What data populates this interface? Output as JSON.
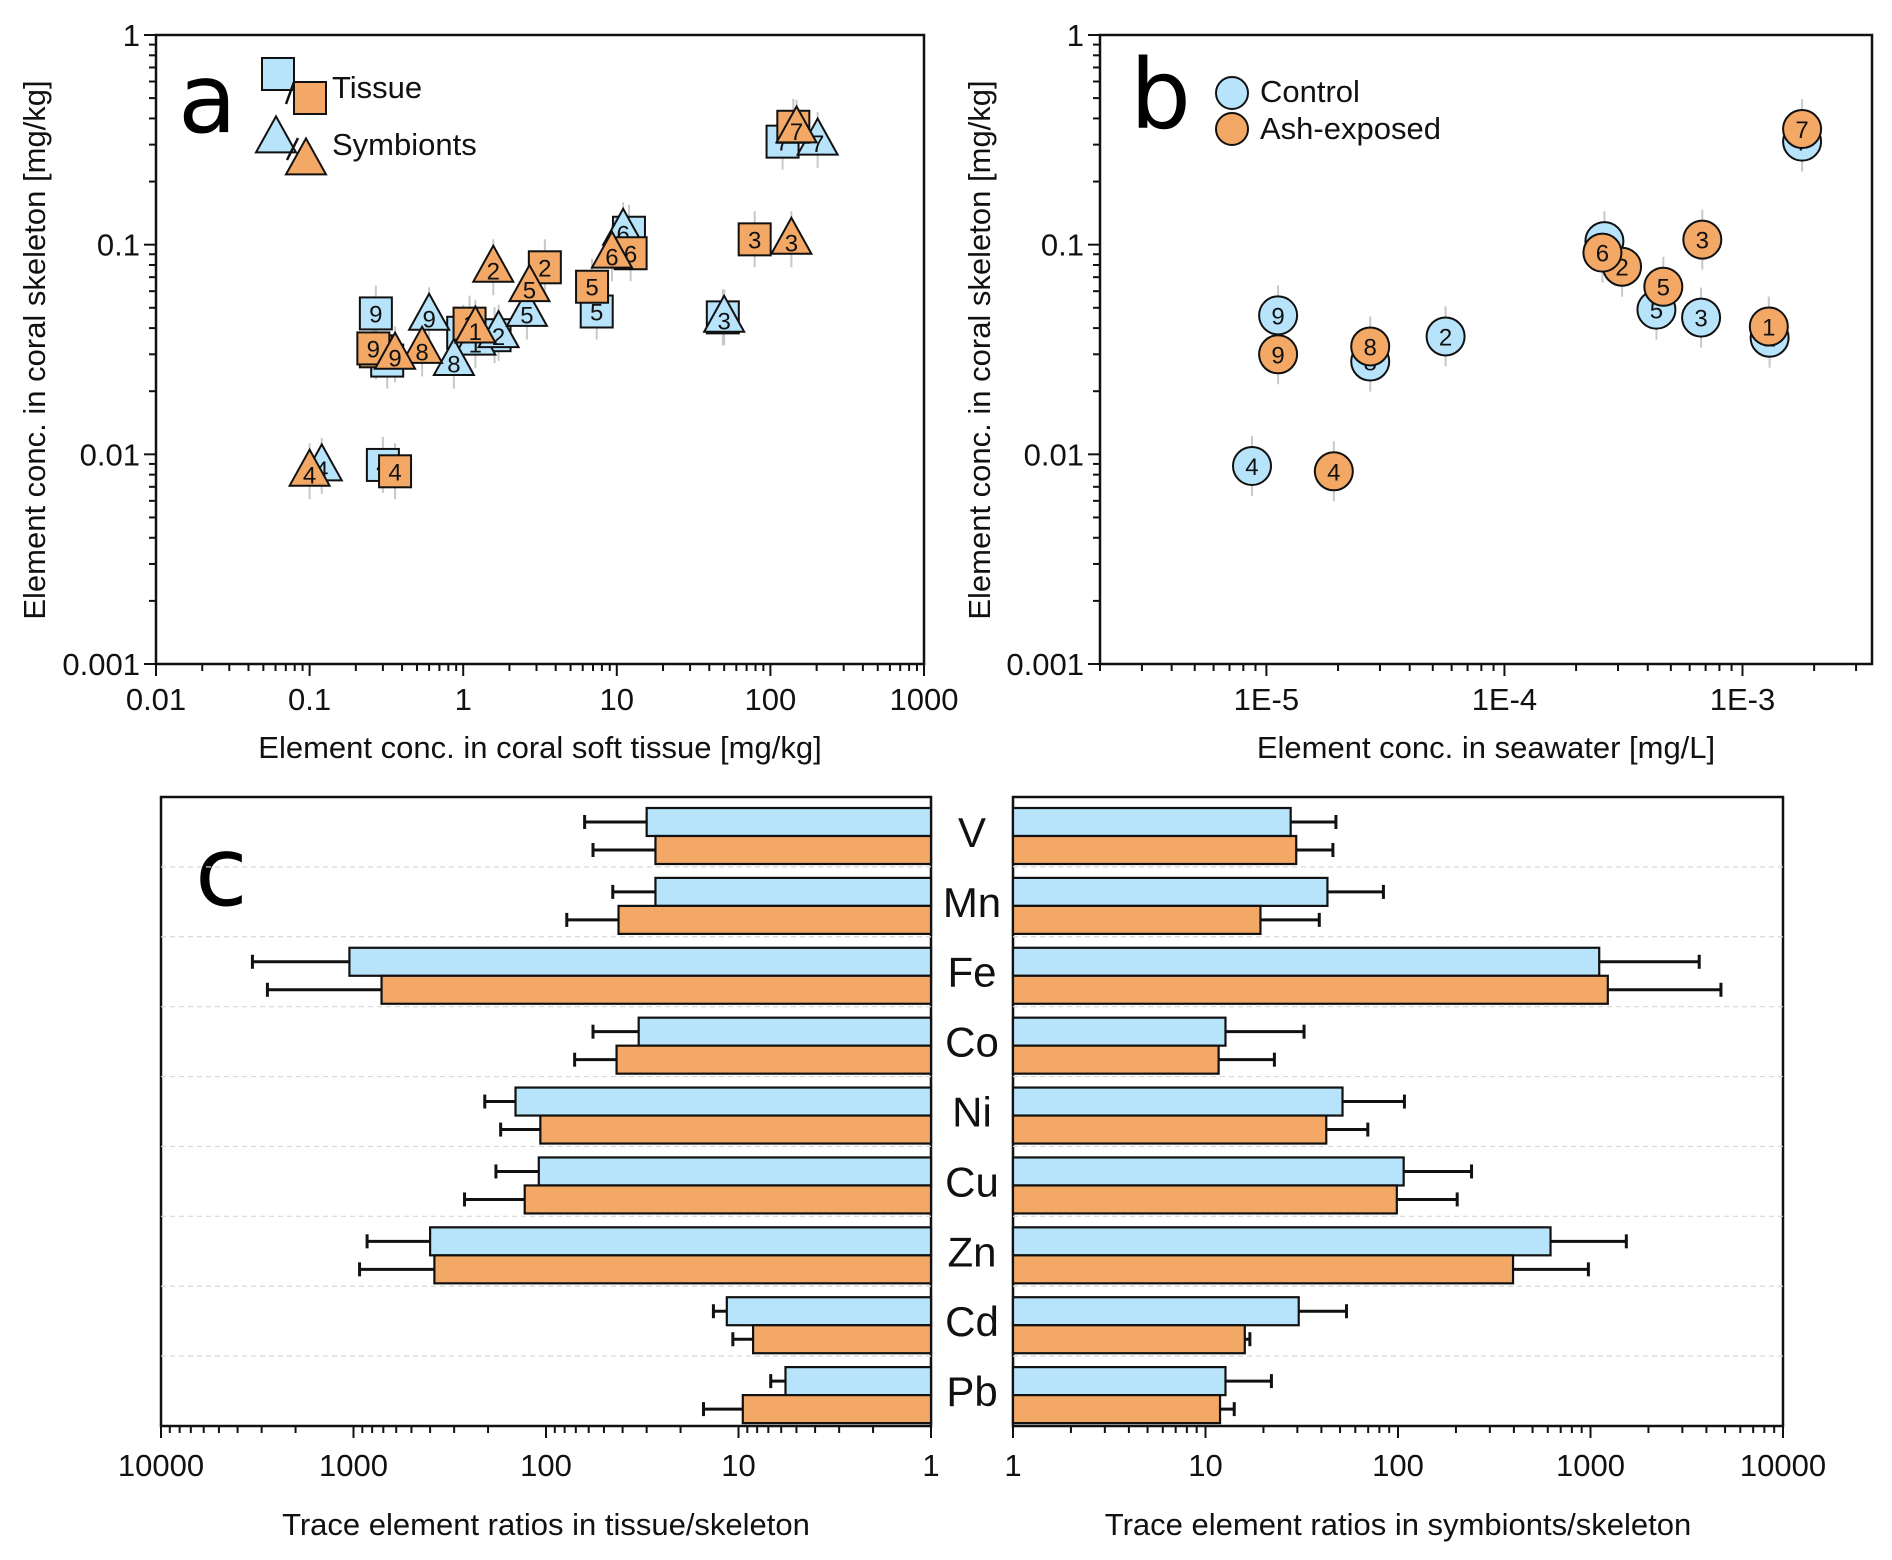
{
  "colors": {
    "control": "#b8e4fb",
    "ash": "#f3a866",
    "outline": "#111111",
    "errorbar_light": "#c8c8c8"
  },
  "chart_data": [
    {
      "panel": "a",
      "type": "scatter",
      "xscale": "log",
      "yscale": "log",
      "xlabel": "Element conc. in coral soft tissue [mg/kg]",
      "ylabel": "Element conc. in coral skeleton [mg/kg]",
      "xlim": [
        0.01,
        1000
      ],
      "ylim": [
        0.001,
        1
      ],
      "xticks": [
        "0.01",
        "0.1",
        "1",
        "10",
        "100",
        "1000"
      ],
      "yticks": [
        "0.001",
        "0.01",
        "0.1",
        "1"
      ],
      "legend": {
        "placement": "top-left",
        "entries": [
          {
            "label": "Tissue",
            "marker": "square",
            "colors": [
              "control",
              "ash"
            ]
          },
          {
            "label": "Symbionts",
            "marker": "triangle",
            "colors": [
              "control",
              "ash"
            ]
          }
        ]
      },
      "series": [
        {
          "name": "Control tissue",
          "marker": "square",
          "color": "control",
          "points": [
            {
              "id": "1",
              "x": 1.0,
              "y": 0.038
            },
            {
              "id": "2",
              "x": 1.6,
              "y": 0.037
            },
            {
              "id": "3",
              "x": 49,
              "y": 0.045
            },
            {
              "id": "4",
              "x": 0.3,
              "y": 0.0089
            },
            {
              "id": "5",
              "x": 7.4,
              "y": 0.048
            },
            {
              "id": "6",
              "x": 12,
              "y": 0.114
            },
            {
              "id": "7",
              "x": 120,
              "y": 0.31
            },
            {
              "id": "8",
              "x": 0.32,
              "y": 0.028
            },
            {
              "id": "9",
              "x": 0.27,
              "y": 0.047
            }
          ]
        },
        {
          "name": "Ash-exposed tissue",
          "marker": "square",
          "color": "ash",
          "points": [
            {
              "id": "1",
              "x": 1.1,
              "y": 0.042
            },
            {
              "id": "2",
              "x": 3.4,
              "y": 0.078
            },
            {
              "id": "3",
              "x": 79,
              "y": 0.106
            },
            {
              "id": "4",
              "x": 0.36,
              "y": 0.0083
            },
            {
              "id": "5",
              "x": 6.9,
              "y": 0.063
            },
            {
              "id": "6",
              "x": 12.3,
              "y": 0.091
            },
            {
              "id": "7",
              "x": 141,
              "y": 0.365
            },
            {
              "id": "8",
              "x": 0.27,
              "y": 0.031
            },
            {
              "id": "9",
              "x": 0.26,
              "y": 0.032
            }
          ]
        },
        {
          "name": "Control symbionts",
          "marker": "triangle",
          "color": "control",
          "points": [
            {
              "id": "1",
              "x": 1.2,
              "y": 0.035
            },
            {
              "id": "2",
              "x": 1.7,
              "y": 0.038
            },
            {
              "id": "3",
              "x": 50,
              "y": 0.045
            },
            {
              "id": "4",
              "x": 0.12,
              "y": 0.0088
            },
            {
              "id": "5",
              "x": 2.6,
              "y": 0.048
            },
            {
              "id": "6",
              "x": 11,
              "y": 0.117
            },
            {
              "id": "7",
              "x": 203,
              "y": 0.315
            },
            {
              "id": "8",
              "x": 0.87,
              "y": 0.028
            },
            {
              "id": "9",
              "x": 0.6,
              "y": 0.046
            }
          ]
        },
        {
          "name": "Ash-exposed symbionts",
          "marker": "triangle",
          "color": "ash",
          "points": [
            {
              "id": "1",
              "x": 1.2,
              "y": 0.04
            },
            {
              "id": "2",
              "x": 1.57,
              "y": 0.078
            },
            {
              "id": "3",
              "x": 137,
              "y": 0.106
            },
            {
              "id": "4",
              "x": 0.1,
              "y": 0.0083
            },
            {
              "id": "5",
              "x": 2.7,
              "y": 0.063
            },
            {
              "id": "6",
              "x": 9.3,
              "y": 0.091
            },
            {
              "id": "7",
              "x": 148,
              "y": 0.36
            },
            {
              "id": "8",
              "x": 0.54,
              "y": 0.032
            },
            {
              "id": "9",
              "x": 0.36,
              "y": 0.03
            }
          ]
        }
      ]
    },
    {
      "panel": "b",
      "type": "scatter",
      "xscale": "log",
      "yscale": "log",
      "xlabel": "Element conc. in seawater [mg/L]",
      "ylabel": "Element conc. in coral skeleton [mg/kg]",
      "xlim": [
        2e-06,
        0.0035
      ],
      "ylim": [
        0.001,
        1
      ],
      "xticks": [
        "1E-5",
        "1E-4",
        "1E-3"
      ],
      "yticks": [
        "0.001",
        "0.01",
        "0.1",
        "1"
      ],
      "legend": {
        "placement": "top-left",
        "entries": [
          {
            "label": "Control",
            "marker": "circle",
            "color": "control"
          },
          {
            "label": "Ash-exposed",
            "marker": "circle",
            "color": "ash"
          }
        ]
      },
      "series": [
        {
          "name": "Control",
          "marker": "circle",
          "color": "control",
          "points": [
            {
              "id": "1",
              "x": 0.0013,
              "y": 0.036
            },
            {
              "id": "2",
              "x": 5.66e-05,
              "y": 0.0365
            },
            {
              "id": "3",
              "x": 0.00067,
              "y": 0.0449
            },
            {
              "id": "4",
              "x": 8.7e-06,
              "y": 0.0088
            },
            {
              "id": "5",
              "x": 0.000435,
              "y": 0.049
            },
            {
              "id": "6",
              "x": 0.000263,
              "y": 0.104
            },
            {
              "id": "7",
              "x": 0.00178,
              "y": 0.31
            },
            {
              "id": "8",
              "x": 2.73e-05,
              "y": 0.0277
            },
            {
              "id": "9",
              "x": 1.12e-05,
              "y": 0.046
            }
          ]
        },
        {
          "name": "Ash-exposed",
          "marker": "circle",
          "color": "ash",
          "points": [
            {
              "id": "1",
              "x": 0.00129,
              "y": 0.0407
            },
            {
              "id": "2",
              "x": 0.000312,
              "y": 0.0785
            },
            {
              "id": "3",
              "x": 0.000678,
              "y": 0.1057
            },
            {
              "id": "4",
              "x": 1.92e-05,
              "y": 0.0083
            },
            {
              "id": "5",
              "x": 0.000465,
              "y": 0.063
            },
            {
              "id": "6",
              "x": 0.000258,
              "y": 0.0916
            },
            {
              "id": "7",
              "x": 0.00178,
              "y": 0.356
            },
            {
              "id": "8",
              "x": 2.73e-05,
              "y": 0.0327
            },
            {
              "id": "9",
              "x": 1.12e-05,
              "y": 0.03
            }
          ]
        }
      ]
    },
    {
      "panel": "c",
      "type": "bar",
      "orientation": "horizontal",
      "categories": [
        "V",
        "Mn",
        "Fe",
        "Co",
        "Ni",
        "Cu",
        "Zn",
        "Cd",
        "Pb"
      ],
      "left": {
        "xlabel": "Trace element ratios in tissue/skeleton",
        "xscale": "log",
        "xlim": [
          10000,
          1
        ],
        "xticks": [
          "10000",
          "1000",
          "100",
          "10",
          "1"
        ],
        "series": [
          {
            "name": "Control",
            "color": "control",
            "values": [
              30,
              27,
              1050,
              33,
              144,
              109,
              400,
              11.5,
              5.7
            ],
            "errors_upper": [
              63,
              45,
              3350,
              57,
              208,
              182,
              850,
              13.5,
              6.8
            ]
          },
          {
            "name": "Ash-exposed",
            "color": "ash",
            "values": [
              27,
              42,
              715,
              43,
              107,
              129,
              380,
              8.4,
              9.5
            ],
            "errors_upper": [
              57,
              78,
              2800,
              71,
              172,
              265,
              930,
              10.7,
              15.2
            ]
          }
        ]
      },
      "right": {
        "xlabel": "Trace element ratios in symbionts/skeleton",
        "xscale": "log",
        "xlim": [
          1,
          10000
        ],
        "xticks": [
          "1",
          "10",
          "100",
          "1000",
          "10000"
        ],
        "series": [
          {
            "name": "Control",
            "color": "control",
            "values": [
              27.7,
              43,
              1110,
              12.7,
              51.5,
              107,
              620,
              30.5,
              12.7
            ],
            "errors_upper": [
              47.6,
              84,
              3670,
              32.5,
              108,
              241,
              1535,
              54,
              22
            ]
          },
          {
            "name": "Ash-exposed",
            "color": "ash",
            "values": [
              29.6,
              19.3,
              1230,
              11.7,
              42.4,
              98.6,
              396,
              16,
              11.9
            ],
            "errors_upper": [
              45.9,
              39,
              4760,
              22.8,
              69.7,
              203,
              975,
              17,
              14.1
            ]
          }
        ]
      }
    }
  ]
}
